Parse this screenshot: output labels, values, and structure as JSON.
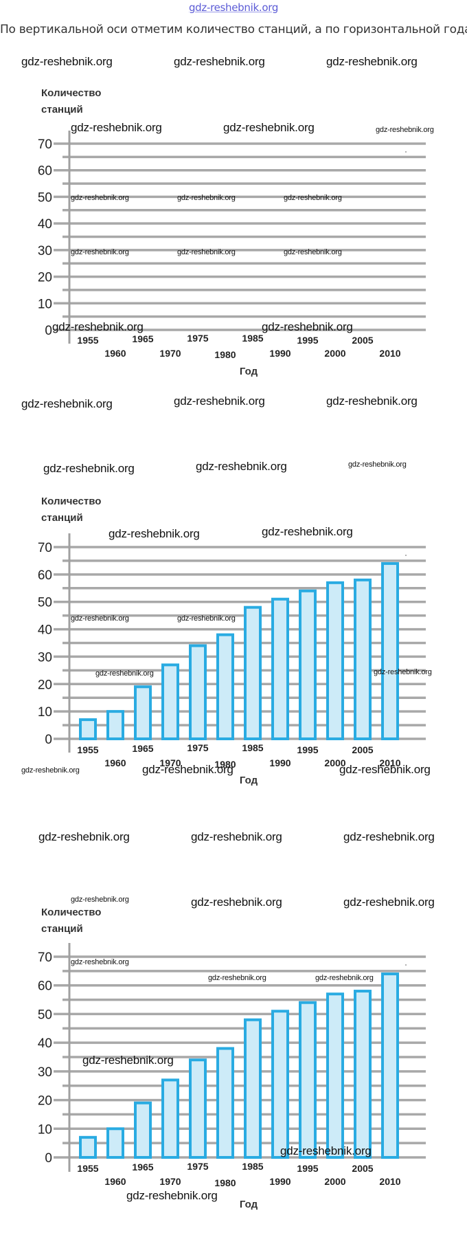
{
  "page": {
    "site_link": "gdz-reshebnik.org",
    "intro_text": "По вертикальной оси отметим количество станций, а по горизонтальной года:",
    "watermark_text": "gdz-reshebnik.org"
  },
  "colors": {
    "bar_stroke": "#29ABE2",
    "bar_fill": "#CDEBF8",
    "grid": "#A8A8A8",
    "axis": "#A0A0A0",
    "text": "#222222",
    "link": "#5B5BD6"
  },
  "chart_data": [
    {
      "type": "bar",
      "title": "",
      "ylabel_lines": [
        "Количество",
        "станций"
      ],
      "xlabel": "Год",
      "ylim": [
        0,
        70
      ],
      "yticks": [
        0,
        10,
        20,
        30,
        40,
        50,
        60,
        70
      ],
      "minor_step": 5,
      "grid": true,
      "categories": [
        "1955",
        "1960",
        "1965",
        "1970",
        "1975",
        "1980",
        "1985",
        "1990",
        "1995",
        "2000",
        "2005",
        "2010"
      ],
      "values": [],
      "note": "empty axes — bars not yet drawn"
    },
    {
      "type": "bar",
      "title": "",
      "ylabel_lines": [
        "Количество",
        "станций"
      ],
      "xlabel": "Год",
      "ylim": [
        0,
        70
      ],
      "yticks": [
        0,
        10,
        20,
        30,
        40,
        50,
        60,
        70
      ],
      "minor_step": 5,
      "grid": true,
      "categories": [
        "1955",
        "1960",
        "1965",
        "1970",
        "1975",
        "1980",
        "1985",
        "1990",
        "1995",
        "2000",
        "2005",
        "2010"
      ],
      "values": [
        7,
        10,
        19,
        27,
        34,
        38,
        48,
        51,
        54,
        57,
        58,
        64
      ]
    },
    {
      "type": "bar",
      "title": "",
      "ylabel_lines": [
        "Количество",
        "станций"
      ],
      "xlabel": "Год",
      "ylim": [
        0,
        70
      ],
      "yticks": [
        0,
        10,
        20,
        30,
        40,
        50,
        60,
        70
      ],
      "minor_step": 5,
      "grid": true,
      "categories": [
        "1955",
        "1960",
        "1965",
        "1970",
        "1975",
        "1980",
        "1985",
        "1990",
        "1995",
        "2000",
        "2005",
        "2010"
      ],
      "values": [
        7,
        10,
        19,
        27,
        34,
        38,
        48,
        51,
        54,
        57,
        58,
        64
      ]
    }
  ]
}
